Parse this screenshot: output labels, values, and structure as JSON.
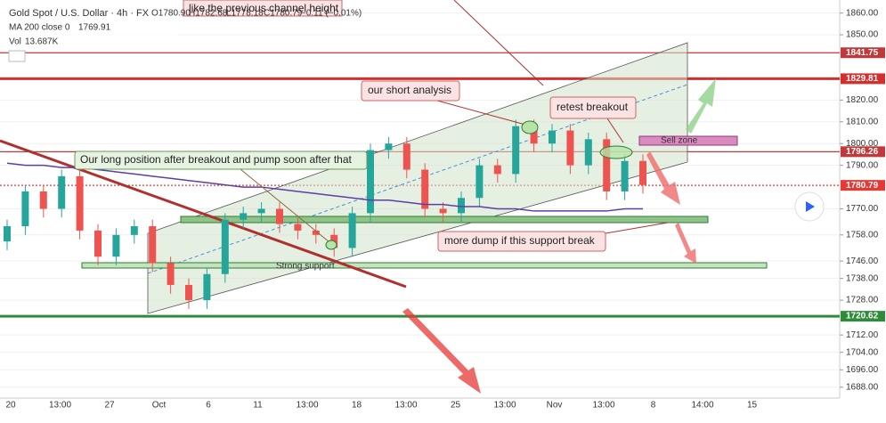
{
  "chart_data": {
    "type": "candlestick",
    "header": {
      "symbol": "Gold Spot / U.S. Dollar · 4h · FX",
      "open": "O1780.90",
      "high": "H1782.68",
      "low": "L1778.18",
      "close": "C1780.79",
      "change": "−0.11 (−0.01%)",
      "ma_label": "MA 200 close 0",
      "ma_value": "1769.91",
      "vol_label": "Vol",
      "vol_value": "13.687K"
    },
    "categories": [
      "20",
      "13:00",
      "27",
      "Oct",
      "6",
      "11",
      "13:00",
      "18",
      "13:00",
      "25",
      "13:00",
      "Nov",
      "13:00",
      "8",
      "14:00",
      "15"
    ],
    "ylim": [
      1683,
      1866
    ],
    "yticks": [
      {
        "value": 1860,
        "label": "1860.00"
      },
      {
        "value": 1850,
        "label": "1850.00"
      },
      {
        "value": 1820,
        "label": "1820.00"
      },
      {
        "value": 1810,
        "label": "1810.00"
      },
      {
        "value": 1800,
        "label": "1800.00"
      },
      {
        "value": 1790,
        "label": "1790.00"
      },
      {
        "value": 1770,
        "label": "1770.00"
      },
      {
        "value": 1758,
        "label": "1758.00"
      },
      {
        "value": 1746,
        "label": "1746.00"
      },
      {
        "value": 1738,
        "label": "1738.00"
      },
      {
        "value": 1728,
        "label": "1728.00"
      },
      {
        "value": 1712,
        "label": "1712.00"
      },
      {
        "value": 1704,
        "label": "1704.00"
      },
      {
        "value": 1696,
        "label": "1696.00"
      },
      {
        "value": 1688,
        "label": "1688.00"
      }
    ],
    "up_color": "#26a69a",
    "down_color": "#ef5350",
    "open": [
      1755,
      1762,
      1778,
      1770,
      1785,
      1760,
      1748,
      1758,
      1762,
      1745,
      1735,
      1728,
      1740,
      1765,
      1768,
      1770,
      1763,
      1760,
      1758,
      1752,
      1768,
      1797,
      1800,
      1788,
      1770,
      1768,
      1775,
      1790,
      1786,
      1808,
      1800,
      1806,
      1790,
      1802,
      1778,
      1792
    ],
    "high": [
      1765,
      1781,
      1781,
      1788,
      1788,
      1763,
      1761,
      1765,
      1765,
      1748,
      1738,
      1743,
      1768,
      1771,
      1773,
      1773,
      1766,
      1763,
      1761,
      1771,
      1800,
      1803,
      1803,
      1791,
      1773,
      1778,
      1793,
      1793,
      1811,
      1811,
      1809,
      1809,
      1805,
      1805,
      1795,
      1795
    ],
    "low": [
      1751,
      1758,
      1766,
      1766,
      1756,
      1744,
      1744,
      1754,
      1741,
      1731,
      1724,
      1724,
      1736,
      1761,
      1764,
      1759,
      1756,
      1754,
      1748,
      1748,
      1764,
      1793,
      1784,
      1766,
      1764,
      1764,
      1771,
      1782,
      1782,
      1796,
      1796,
      1786,
      1786,
      1774,
      1774,
      1777
    ],
    "close": [
      1762,
      1778,
      1770,
      1785,
      1760,
      1748,
      1758,
      1762,
      1745,
      1735,
      1728,
      1740,
      1765,
      1768,
      1770,
      1763,
      1760,
      1758,
      1752,
      1768,
      1797,
      1800,
      1788,
      1770,
      1768,
      1775,
      1790,
      1786,
      1808,
      1800,
      1806,
      1790,
      1802,
      1778,
      1792,
      1781
    ],
    "ma": {
      "color": "#5b3fa6",
      "values": [
        1791,
        1790,
        1790,
        1789,
        1789,
        1788,
        1787,
        1786,
        1785,
        1784,
        1783,
        1782,
        1781,
        1780,
        1780,
        1779,
        1778,
        1777,
        1776,
        1775,
        1774,
        1774,
        1773,
        1772,
        1772,
        1771,
        1771,
        1770,
        1770,
        1769,
        1769,
        1769,
        1769,
        1769,
        1770,
        1770
      ]
    },
    "levels": [
      {
        "value": 1841.75,
        "color": "#c0393b"
      },
      {
        "value": 1829.81,
        "color": "#d32f2f"
      },
      {
        "value": 1796.26,
        "color": "#c0393b"
      },
      {
        "value": 1780.79,
        "color": "#e53935"
      },
      {
        "value": 1720.62,
        "color": "#2e8b3a"
      }
    ],
    "annotations": {
      "long": "Our long position after breakout and pump soon after that",
      "short": "our short analysis",
      "retest": "retest breakout",
      "sell": "Sell zone",
      "dump": "more dump if this support break",
      "support": "Strong support",
      "channel": "like the previous channel height"
    }
  }
}
